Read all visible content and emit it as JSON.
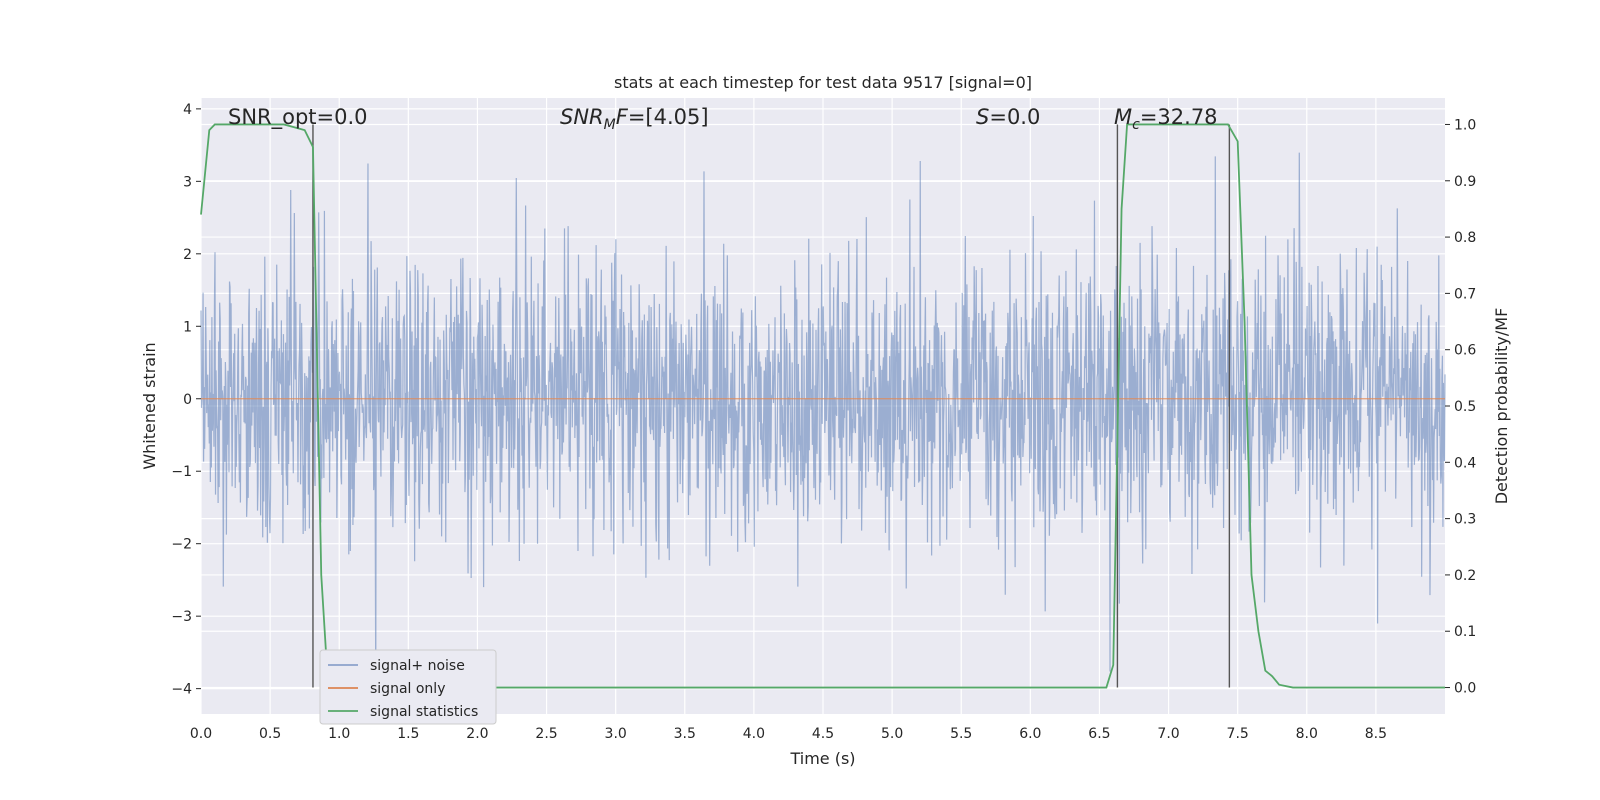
{
  "chart_data": {
    "type": "line",
    "title": "stats at each timestep for test data 9517 [signal=0]",
    "xlabel": "Time (s)",
    "ylabel": "Whitened strain",
    "y2label": "Detection probability/MF",
    "xlim": [
      0.0,
      9.0
    ],
    "ylim": [
      -4.35,
      4.15
    ],
    "y2lim": [
      -0.047,
      1.047
    ],
    "x_ticks": [
      "0.0",
      "0.5",
      "1.0",
      "1.5",
      "2.0",
      "2.5",
      "3.0",
      "3.5",
      "4.0",
      "4.5",
      "5.0",
      "5.5",
      "6.0",
      "6.5",
      "7.0",
      "7.5",
      "8.0",
      "8.5"
    ],
    "y_ticks": [
      "4",
      "3",
      "2",
      "1",
      "0",
      "−1",
      "−2",
      "−3",
      "−4"
    ],
    "y2_ticks": [
      "1.0",
      "0.9",
      "0.8",
      "0.7",
      "0.6",
      "0.5",
      "0.4",
      "0.3",
      "0.2",
      "0.1",
      "0.0"
    ],
    "grid": true,
    "legend_position": "lower-left",
    "annotations": {
      "snr_opt": "SNR_opt=0.0",
      "snr_mf_main": "SNR",
      "snr_mf_sub": "M",
      "snr_mf_rest": "F=[4.05]",
      "s_main": "S",
      "s_rest": "=0.0",
      "mc_main": "M",
      "mc_sub": "c",
      "mc_rest": "=32.78"
    },
    "vertical_lines_x": [
      0.81,
      6.63,
      7.44
    ],
    "series": [
      {
        "name": "signal+ noise",
        "color": "#4c72b0",
        "axis": "left",
        "description_value": "whitened noise, roughly within ±2 with spikes to ±4",
        "envelope": {
          "typical_min": -1.6,
          "typical_max": 1.6,
          "max": 3.7,
          "min": -4.0
        }
      },
      {
        "name": "signal only",
        "color": "#dd8452",
        "axis": "left",
        "x": [
          0.0,
          9.0
        ],
        "y": [
          0.0,
          0.0
        ]
      },
      {
        "name": "signal statistics",
        "color": "#55a868",
        "axis": "right",
        "x": [
          0.0,
          0.06,
          0.1,
          0.2,
          0.4,
          0.6,
          0.75,
          0.81,
          0.87,
          0.92,
          1.0,
          2.0,
          3.0,
          4.0,
          5.0,
          6.0,
          6.55,
          6.6,
          6.66,
          6.7,
          6.8,
          7.0,
          7.2,
          7.43,
          7.5,
          7.55,
          7.6,
          7.65,
          7.7,
          7.75,
          7.8,
          7.9,
          8.0,
          9.0
        ],
        "y": [
          0.84,
          0.99,
          1.0,
          1.0,
          1.0,
          1.0,
          0.99,
          0.96,
          0.2,
          0.0,
          0.0,
          0.0,
          0.0,
          0.0,
          0.0,
          0.0,
          0.0,
          0.04,
          0.85,
          1.0,
          1.0,
          1.0,
          1.0,
          1.0,
          0.97,
          0.65,
          0.2,
          0.1,
          0.03,
          0.02,
          0.005,
          0.0,
          0.0,
          0.0
        ]
      }
    ]
  }
}
